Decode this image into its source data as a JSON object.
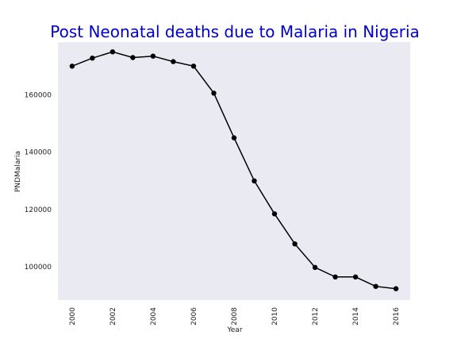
{
  "chart_data": {
    "type": "line",
    "title": "Post Neonatal deaths due to Malaria in Nigeria",
    "xlabel": "Year",
    "ylabel": "PNDMalaria",
    "x": [
      2000,
      2001,
      2002,
      2003,
      2004,
      2005,
      2006,
      2007,
      2008,
      2009,
      2010,
      2011,
      2012,
      2013,
      2014,
      2015,
      2016
    ],
    "series": [
      {
        "values": [
          170000,
          172800,
          175000,
          173000,
          173500,
          171600,
          170000,
          160600,
          145000,
          130000,
          118500,
          108000,
          99800,
          96500,
          96500,
          93200,
          92400
        ]
      }
    ],
    "x_ticks": [
      "2000",
      "2002",
      "2004",
      "2006",
      "2008",
      "2010",
      "2012",
      "2014",
      "2016"
    ],
    "y_ticks": [
      "100000",
      "120000",
      "140000",
      "160000"
    ],
    "xlim": [
      1999.3,
      2016.7
    ],
    "ylim": [
      88400,
      178400
    ],
    "grid": false,
    "colors": {
      "title": "#0000cc",
      "line": "#000000",
      "plot_background": "#eaeaf2"
    }
  }
}
